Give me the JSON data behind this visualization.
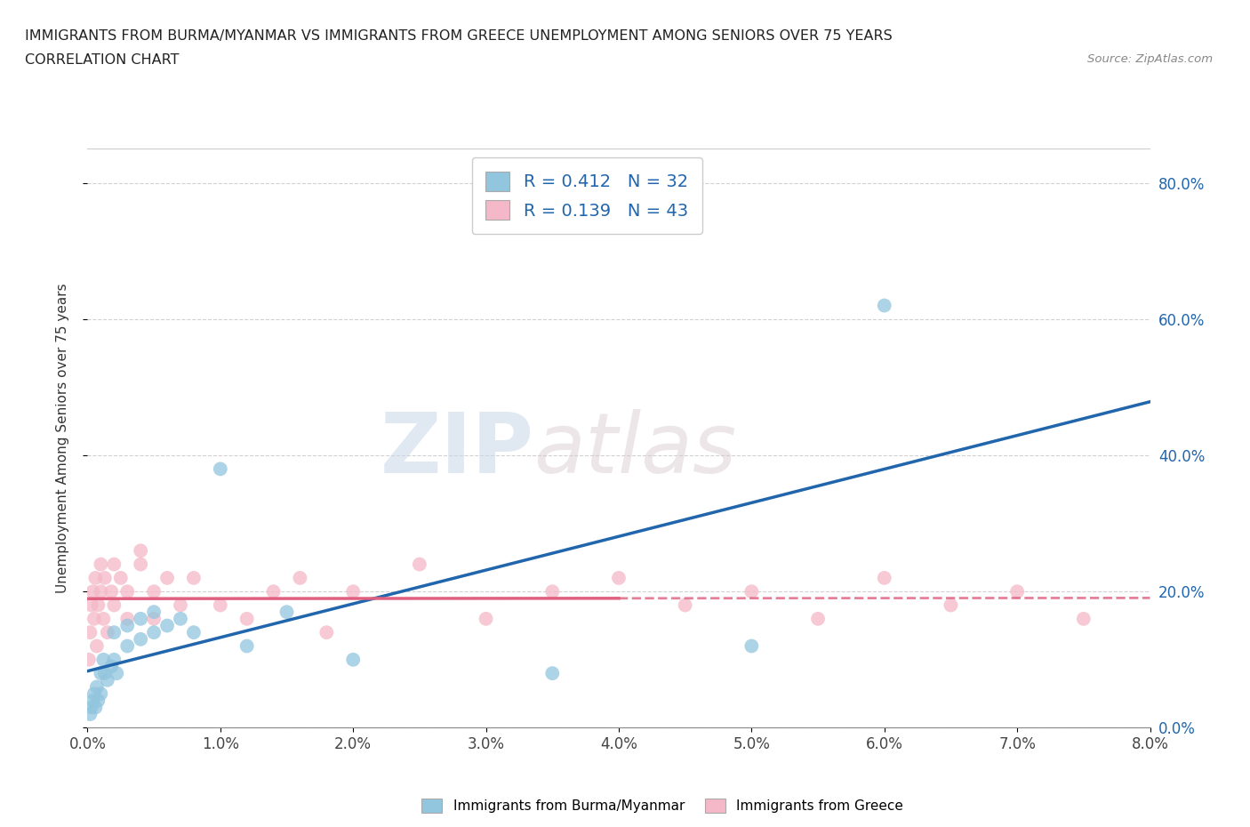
{
  "title_line1": "IMMIGRANTS FROM BURMA/MYANMAR VS IMMIGRANTS FROM GREECE UNEMPLOYMENT AMONG SENIORS OVER 75 YEARS",
  "title_line2": "CORRELATION CHART",
  "source_text": "Source: ZipAtlas.com",
  "ylabel_label": "Unemployment Among Seniors over 75 years",
  "xlim": [
    0.0,
    0.08
  ],
  "ylim": [
    0.0,
    0.85
  ],
  "legend_label1": "Immigrants from Burma/Myanmar",
  "legend_label2": "Immigrants from Greece",
  "R1": "0.412",
  "N1": "32",
  "R2": "0.139",
  "N2": "43",
  "color_burma": "#92c5de",
  "color_greece": "#f4b8c8",
  "trendline_color_burma": "#2166ac",
  "trendline_color_greece": "#e06080",
  "watermark_zip": "ZIP",
  "watermark_atlas": "atlas",
  "background_color": "#ffffff",
  "grid_color": "#cccccc",
  "burma_x": [
    0.0002,
    0.0003,
    0.0004,
    0.0005,
    0.0006,
    0.0007,
    0.0008,
    0.001,
    0.001,
    0.0012,
    0.0013,
    0.0015,
    0.0018,
    0.002,
    0.002,
    0.0022,
    0.003,
    0.003,
    0.004,
    0.004,
    0.005,
    0.005,
    0.006,
    0.007,
    0.008,
    0.01,
    0.012,
    0.015,
    0.02,
    0.035,
    0.05,
    0.06
  ],
  "burma_y": [
    0.02,
    0.03,
    0.04,
    0.05,
    0.03,
    0.06,
    0.04,
    0.08,
    0.05,
    0.1,
    0.08,
    0.07,
    0.09,
    0.14,
    0.1,
    0.08,
    0.12,
    0.15,
    0.13,
    0.16,
    0.14,
    0.17,
    0.15,
    0.16,
    0.14,
    0.38,
    0.12,
    0.17,
    0.1,
    0.08,
    0.12,
    0.62
  ],
  "greece_x": [
    0.0001,
    0.0002,
    0.0003,
    0.0004,
    0.0005,
    0.0006,
    0.0007,
    0.0008,
    0.001,
    0.001,
    0.0012,
    0.0013,
    0.0015,
    0.0018,
    0.002,
    0.002,
    0.0025,
    0.003,
    0.003,
    0.004,
    0.004,
    0.005,
    0.005,
    0.006,
    0.007,
    0.008,
    0.01,
    0.012,
    0.014,
    0.016,
    0.018,
    0.02,
    0.025,
    0.03,
    0.035,
    0.04,
    0.045,
    0.05,
    0.055,
    0.06,
    0.065,
    0.07,
    0.075
  ],
  "greece_y": [
    0.1,
    0.14,
    0.18,
    0.2,
    0.16,
    0.22,
    0.12,
    0.18,
    0.24,
    0.2,
    0.16,
    0.22,
    0.14,
    0.2,
    0.24,
    0.18,
    0.22,
    0.16,
    0.2,
    0.26,
    0.24,
    0.2,
    0.16,
    0.22,
    0.18,
    0.22,
    0.18,
    0.16,
    0.2,
    0.22,
    0.14,
    0.2,
    0.24,
    0.16,
    0.2,
    0.22,
    0.18,
    0.2,
    0.16,
    0.22,
    0.18,
    0.2,
    0.16
  ]
}
